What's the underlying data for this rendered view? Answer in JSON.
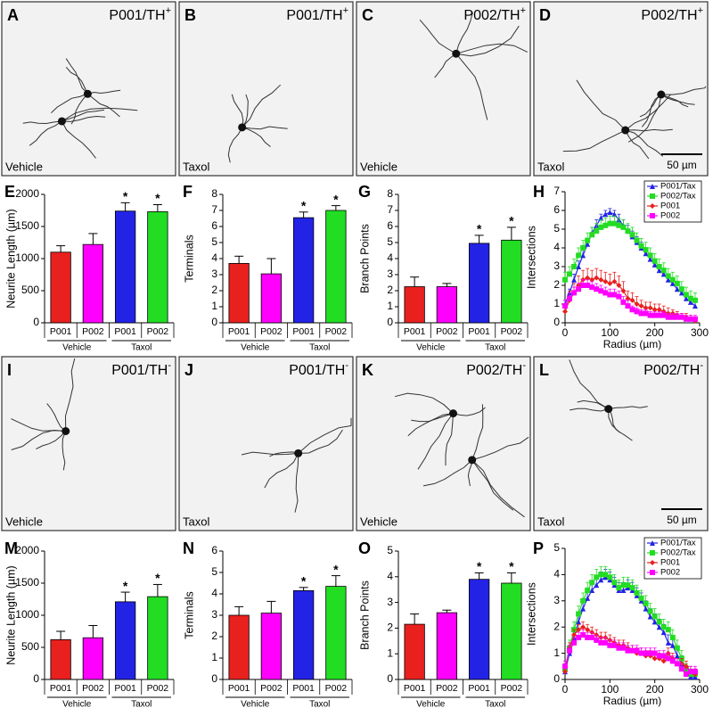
{
  "image_panels": [
    {
      "letter": "A",
      "label": "P001/TH",
      "superscript": "+",
      "condition": "Vehicle"
    },
    {
      "letter": "B",
      "label": "P001/TH",
      "superscript": "+",
      "condition": "Taxol"
    },
    {
      "letter": "C",
      "label": "P002/TH",
      "superscript": "+",
      "condition": "Vehicle"
    },
    {
      "letter": "D",
      "label": "P002/TH",
      "superscript": "+",
      "condition": "Taxol",
      "scale_bar": "50 µm"
    },
    {
      "letter": "I",
      "label": "P001/TH",
      "superscript": "-",
      "condition": "Vehicle"
    },
    {
      "letter": "J",
      "label": "P001/TH",
      "superscript": "-",
      "condition": "Taxol"
    },
    {
      "letter": "K",
      "label": "P002/TH",
      "superscript": "-",
      "condition": "Vehicle"
    },
    {
      "letter": "L",
      "label": "P002/TH",
      "superscript": "-",
      "condition": "Taxol",
      "scale_bar": "50 µm"
    }
  ],
  "chart_data": [
    {
      "type": "bar",
      "panel_letter": "E",
      "ylabel": "Neurite Length (µm)",
      "categories": [
        "P001",
        "P002",
        "P001",
        "P002"
      ],
      "groups": [
        "Vehicle",
        "Taxol"
      ],
      "values": [
        1100,
        1220,
        1740,
        1730
      ],
      "errors": [
        100,
        170,
        130,
        110
      ],
      "colors": [
        "#e8201e",
        "#ff00ff",
        "#2323e6",
        "#22dd22"
      ],
      "significance": [
        null,
        null,
        "*",
        "*"
      ],
      "ylim": [
        0,
        2000
      ],
      "yticks": [
        0,
        500,
        1000,
        1500,
        2000
      ]
    },
    {
      "type": "bar",
      "panel_letter": "F",
      "ylabel": "Terminals",
      "categories": [
        "P001",
        "P002",
        "P001",
        "P002"
      ],
      "groups": [
        "Vehicle",
        "Taxol"
      ],
      "values": [
        3.7,
        3.05,
        6.55,
        7.0
      ],
      "errors": [
        0.45,
        0.95,
        0.35,
        0.3
      ],
      "colors": [
        "#e8201e",
        "#ff00ff",
        "#2323e6",
        "#22dd22"
      ],
      "significance": [
        null,
        null,
        "*",
        "*"
      ],
      "ylim": [
        0,
        8
      ],
      "yticks": [
        0,
        1,
        2,
        3,
        4,
        5,
        6,
        7,
        8
      ]
    },
    {
      "type": "bar",
      "panel_letter": "G",
      "ylabel": "Branch Points",
      "categories": [
        "P001",
        "P002",
        "P001",
        "P002"
      ],
      "groups": [
        "Vehicle",
        "Taxol"
      ],
      "values": [
        2.25,
        2.25,
        4.95,
        5.15
      ],
      "errors": [
        0.6,
        0.2,
        0.5,
        0.8
      ],
      "colors": [
        "#e8201e",
        "#ff00ff",
        "#2323e6",
        "#22dd22"
      ],
      "significance": [
        null,
        null,
        "*",
        "*"
      ],
      "ylim": [
        0,
        8
      ],
      "yticks": [
        0,
        1,
        2,
        3,
        4,
        5,
        6,
        7,
        8
      ]
    },
    {
      "type": "line",
      "panel_letter": "H",
      "ylabel": "Intersections",
      "xlabel": "Radius (µm)",
      "x": [
        0,
        10,
        20,
        30,
        40,
        50,
        60,
        70,
        80,
        90,
        100,
        110,
        120,
        130,
        140,
        150,
        160,
        170,
        180,
        190,
        200,
        210,
        220,
        230,
        240,
        250,
        260,
        270,
        280,
        290
      ],
      "xlim": [
        0,
        300
      ],
      "xticks": [
        0,
        100,
        200,
        300
      ],
      "ylim": [
        0,
        7
      ],
      "yticks": [
        0,
        1,
        2,
        3,
        4,
        5,
        6,
        7
      ],
      "series": [
        {
          "name": "P001/Tax",
          "color": "#2323e6",
          "marker": "triangle",
          "values": [
            1.0,
            1.6,
            2.3,
            3.0,
            3.6,
            4.2,
            4.8,
            5.2,
            5.6,
            5.8,
            5.9,
            5.8,
            5.5,
            5.2,
            4.9,
            4.6,
            4.3,
            4.0,
            3.7,
            3.4,
            3.1,
            2.8,
            2.6,
            2.3,
            2.1,
            1.8,
            1.6,
            1.3,
            1.1,
            0.9
          ],
          "errors": [
            0.2,
            0.2,
            0.3,
            0.3,
            0.3,
            0.3,
            0.3,
            0.3,
            0.2,
            0.2,
            0.2,
            0.2,
            0.3,
            0.3,
            0.3,
            0.3,
            0.3,
            0.3,
            0.3,
            0.3,
            0.3,
            0.3,
            0.3,
            0.3,
            0.3,
            0.3,
            0.3,
            0.3,
            0.3,
            0.3
          ]
        },
        {
          "name": "P002/Tax",
          "color": "#22dd22",
          "marker": "square",
          "values": [
            2.3,
            2.6,
            3.0,
            3.6,
            4.0,
            4.4,
            4.7,
            4.9,
            5.1,
            5.2,
            5.3,
            5.3,
            5.2,
            5.1,
            4.9,
            4.7,
            4.4,
            4.1,
            3.9,
            3.6,
            3.3,
            3.0,
            2.8,
            2.5,
            2.3,
            2.1,
            1.8,
            1.5,
            1.3,
            1.2
          ],
          "errors": [
            0.4,
            0.4,
            0.4,
            0.4,
            0.4,
            0.4,
            0.4,
            0.4,
            0.4,
            0.4,
            0.4,
            0.4,
            0.4,
            0.4,
            0.4,
            0.4,
            0.4,
            0.4,
            0.4,
            0.4,
            0.4,
            0.4,
            0.4,
            0.4,
            0.4,
            0.4,
            0.4,
            0.4,
            0.4,
            0.4
          ]
        },
        {
          "name": "P001",
          "color": "#e8201e",
          "marker": "diamond",
          "values": [
            0.6,
            1.2,
            1.6,
            2.0,
            2.3,
            2.4,
            2.3,
            2.4,
            2.3,
            2.2,
            2.1,
            2.2,
            2.0,
            1.7,
            1.3,
            1.2,
            1.0,
            0.9,
            0.8,
            0.8,
            0.7,
            0.7,
            0.6,
            0.5,
            0.5,
            0.4,
            0.3,
            0.3,
            0.2,
            0.1
          ],
          "errors": [
            0.4,
            0.5,
            0.5,
            0.5,
            0.5,
            0.5,
            0.5,
            0.5,
            0.5,
            0.5,
            0.5,
            0.5,
            0.5,
            0.5,
            0.4,
            0.4,
            0.4,
            0.3,
            0.3,
            0.3,
            0.3,
            0.3,
            0.3,
            0.3,
            0.2,
            0.2,
            0.2,
            0.2,
            0.2,
            0.2
          ]
        },
        {
          "name": "P002",
          "color": "#ff00ff",
          "marker": "square",
          "values": [
            0.9,
            1.3,
            1.6,
            1.8,
            2.0,
            2.0,
            1.9,
            1.8,
            1.7,
            1.6,
            1.5,
            1.5,
            1.4,
            1.1,
            0.9,
            0.7,
            0.6,
            0.5,
            0.5,
            0.4,
            0.4,
            0.4,
            0.4,
            0.3,
            0.3,
            0.3,
            0.3,
            0.2,
            0.2,
            0.2
          ],
          "errors": [
            0.3,
            0.3,
            0.3,
            0.3,
            0.3,
            0.3,
            0.3,
            0.3,
            0.3,
            0.3,
            0.3,
            0.3,
            0.3,
            0.3,
            0.3,
            0.2,
            0.2,
            0.2,
            0.2,
            0.2,
            0.2,
            0.2,
            0.2,
            0.2,
            0.2,
            0.2,
            0.2,
            0.2,
            0.2,
            0.2
          ]
        }
      ]
    },
    {
      "type": "bar",
      "panel_letter": "M",
      "ylabel": "Neurite Length (µm)",
      "categories": [
        "P001",
        "P002",
        "P001",
        "P002"
      ],
      "groups": [
        "Vehicle",
        "Taxol"
      ],
      "values": [
        620,
        650,
        1210,
        1290
      ],
      "errors": [
        130,
        190,
        150,
        190
      ],
      "colors": [
        "#e8201e",
        "#ff00ff",
        "#2323e6",
        "#22dd22"
      ],
      "significance": [
        null,
        null,
        "*",
        "*"
      ],
      "ylim": [
        0,
        2000
      ],
      "yticks": [
        0,
        500,
        1000,
        1500,
        2000
      ]
    },
    {
      "type": "bar",
      "panel_letter": "N",
      "ylabel": "Terminals",
      "categories": [
        "P001",
        "P002",
        "P001",
        "P002"
      ],
      "groups": [
        "Vehicle",
        "Taxol"
      ],
      "values": [
        3.0,
        3.1,
        4.15,
        4.35
      ],
      "errors": [
        0.4,
        0.55,
        0.15,
        0.5
      ],
      "colors": [
        "#e8201e",
        "#ff00ff",
        "#2323e6",
        "#22dd22"
      ],
      "significance": [
        null,
        null,
        "*",
        "*"
      ],
      "ylim": [
        0,
        6
      ],
      "yticks": [
        0,
        1,
        2,
        3,
        4,
        5,
        6
      ]
    },
    {
      "type": "bar",
      "panel_letter": "O",
      "ylabel": "Branch Points",
      "categories": [
        "P001",
        "P002",
        "P001",
        "P002"
      ],
      "groups": [
        "Vehicle",
        "Taxol"
      ],
      "values": [
        2.15,
        2.6,
        3.9,
        3.75
      ],
      "errors": [
        0.4,
        0.1,
        0.25,
        0.4
      ],
      "colors": [
        "#e8201e",
        "#ff00ff",
        "#2323e6",
        "#22dd22"
      ],
      "significance": [
        null,
        null,
        "*",
        "*"
      ],
      "ylim": [
        0,
        5
      ],
      "yticks": [
        0,
        1,
        2,
        3,
        4,
        5
      ]
    },
    {
      "type": "line",
      "panel_letter": "P",
      "ylabel": "Intersections",
      "xlabel": "Radius (µm)",
      "x": [
        0,
        10,
        20,
        30,
        40,
        50,
        60,
        70,
        80,
        90,
        100,
        110,
        120,
        130,
        140,
        150,
        160,
        170,
        180,
        190,
        200,
        210,
        220,
        230,
        240,
        250,
        260,
        270,
        280,
        290
      ],
      "xlim": [
        0,
        300
      ],
      "xticks": [
        0,
        100,
        200,
        300
      ],
      "ylim": [
        0,
        5
      ],
      "yticks": [
        0,
        1,
        2,
        3,
        4,
        5
      ],
      "series": [
        {
          "name": "P001/Tax",
          "color": "#2323e6",
          "marker": "triangle",
          "values": [
            0.3,
            1.0,
            1.6,
            2.2,
            2.7,
            3.1,
            3.4,
            3.6,
            3.8,
            3.9,
            3.8,
            3.6,
            3.4,
            3.4,
            3.5,
            3.4,
            3.2,
            3.0,
            2.7,
            2.4,
            2.2,
            2.0,
            1.8,
            1.4,
            1.3,
            0.9,
            0.6,
            0.3,
            0.1,
            0.1
          ],
          "errors": [
            0.2,
            0.3,
            0.3,
            0.3,
            0.3,
            0.3,
            0.3,
            0.3,
            0.3,
            0.3,
            0.3,
            0.3,
            0.3,
            0.3,
            0.3,
            0.3,
            0.3,
            0.3,
            0.3,
            0.3,
            0.3,
            0.3,
            0.3,
            0.3,
            0.3,
            0.3,
            0.3,
            0.2,
            0.2,
            0.2
          ]
        },
        {
          "name": "P002/Tax",
          "color": "#22dd22",
          "marker": "square",
          "values": [
            0.4,
            1.2,
            1.9,
            2.5,
            3.0,
            3.4,
            3.7,
            3.9,
            4.0,
            4.0,
            3.9,
            3.7,
            3.5,
            3.6,
            3.6,
            3.5,
            3.3,
            3.1,
            2.9,
            2.6,
            2.4,
            2.2,
            2.0,
            1.9,
            1.6,
            1.2,
            0.8,
            0.4,
            0.2,
            0.2
          ],
          "errors": [
            0.2,
            0.3,
            0.3,
            0.3,
            0.3,
            0.3,
            0.3,
            0.3,
            0.3,
            0.3,
            0.3,
            0.3,
            0.3,
            0.3,
            0.3,
            0.3,
            0.3,
            0.3,
            0.3,
            0.3,
            0.3,
            0.3,
            0.3,
            0.3,
            0.3,
            0.3,
            0.3,
            0.2,
            0.2,
            0.2
          ]
        },
        {
          "name": "P001",
          "color": "#e8201e",
          "marker": "diamond",
          "values": [
            0.3,
            1.2,
            1.7,
            1.9,
            2.0,
            1.9,
            1.8,
            1.7,
            1.6,
            1.6,
            1.5,
            1.4,
            1.3,
            1.3,
            1.2,
            1.1,
            1.0,
            1.0,
            0.9,
            0.9,
            0.8,
            0.8,
            0.7,
            1.0,
            0.8,
            0.6,
            0.6,
            0.5,
            0.3,
            0.2
          ],
          "errors": [
            0.2,
            0.2,
            0.2,
            0.2,
            0.2,
            0.2,
            0.2,
            0.2,
            0.2,
            0.2,
            0.2,
            0.2,
            0.2,
            0.2,
            0.2,
            0.2,
            0.2,
            0.2,
            0.2,
            0.2,
            0.2,
            0.2,
            0.2,
            0.2,
            0.2,
            0.2,
            0.2,
            0.2,
            0.2,
            0.2
          ]
        },
        {
          "name": "P002",
          "color": "#ff00ff",
          "marker": "square",
          "values": [
            0.5,
            1.1,
            1.4,
            1.6,
            1.7,
            1.6,
            1.6,
            1.5,
            1.4,
            1.4,
            1.3,
            1.3,
            1.2,
            1.2,
            1.1,
            1.1,
            1.1,
            1.0,
            1.0,
            1.0,
            1.0,
            0.9,
            0.9,
            0.8,
            0.7,
            0.6,
            0.4,
            0.2,
            0.3,
            0.3
          ],
          "errors": [
            0.2,
            0.2,
            0.2,
            0.2,
            0.2,
            0.2,
            0.2,
            0.2,
            0.2,
            0.2,
            0.2,
            0.2,
            0.2,
            0.2,
            0.2,
            0.2,
            0.2,
            0.2,
            0.2,
            0.2,
            0.2,
            0.2,
            0.2,
            0.2,
            0.2,
            0.2,
            0.2,
            0.2,
            0.2,
            0.2
          ]
        }
      ]
    }
  ]
}
